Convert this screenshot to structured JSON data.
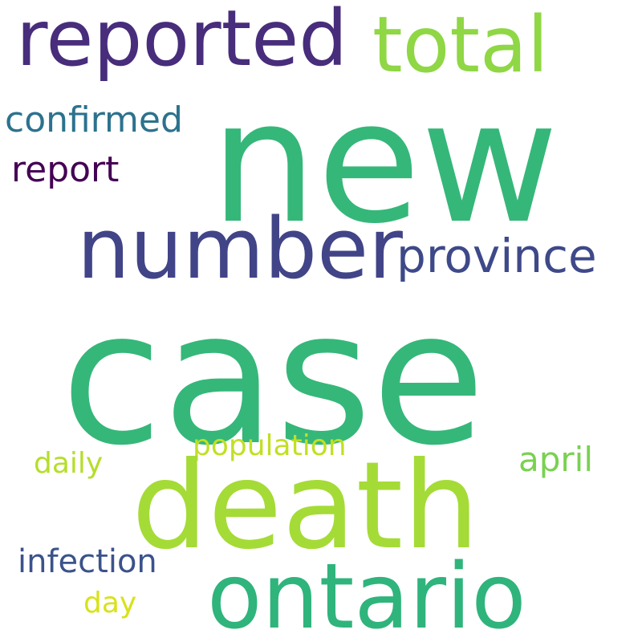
{
  "words": {
    "new": {
      "text": "new",
      "color": "#35b779"
    },
    "case": {
      "text": "case",
      "color": "#35b779"
    },
    "death": {
      "text": "death",
      "color": "#a5db36"
    },
    "ontario": {
      "text": "ontario",
      "color": "#2fb47c"
    },
    "number": {
      "text": "number",
      "color": "#414487"
    },
    "reported": {
      "text": "reported",
      "color": "#472d7b"
    },
    "total": {
      "text": "total",
      "color": "#8fd744"
    },
    "province": {
      "text": "province",
      "color": "#3e4989"
    },
    "confirmed": {
      "text": "confirmed",
      "color": "#2c728e"
    },
    "report": {
      "text": "report",
      "color": "#440154"
    },
    "population": {
      "text": "population",
      "color": "#c2df23"
    },
    "april": {
      "text": "april",
      "color": "#7ad151"
    },
    "daily": {
      "text": "daily",
      "color": "#b5de2b"
    },
    "infection": {
      "text": "infection",
      "color": "#3b528b"
    },
    "day": {
      "text": "day",
      "color": "#d8e219"
    }
  }
}
